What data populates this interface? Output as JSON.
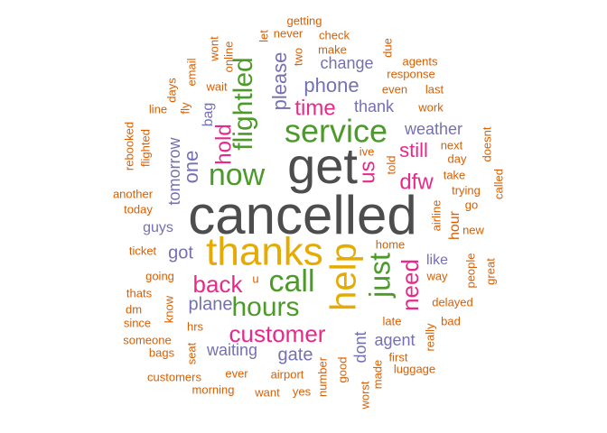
{
  "palette": {
    "gray": "#4d4d4d",
    "orange": "#d95f02",
    "purple": "#7570b3",
    "magenta": "#e7298a",
    "green": "#4c9a2a",
    "gold": "#e6ab02"
  },
  "words": [
    {
      "text": "cancelled",
      "color": "gray"
    },
    {
      "text": "get",
      "color": "gray"
    },
    {
      "text": "thanks",
      "color": "gold"
    },
    {
      "text": "help",
      "color": "gold"
    },
    {
      "text": "service",
      "color": "green"
    },
    {
      "text": "now",
      "color": "green"
    },
    {
      "text": "call",
      "color": "green"
    },
    {
      "text": "hours",
      "color": "green"
    },
    {
      "text": "flightled",
      "color": "green"
    },
    {
      "text": "just",
      "color": "green"
    },
    {
      "text": "customer",
      "color": "magenta"
    },
    {
      "text": "back",
      "color": "magenta"
    },
    {
      "text": "need",
      "color": "magenta"
    },
    {
      "text": "hold",
      "color": "magenta"
    },
    {
      "text": "time",
      "color": "magenta"
    },
    {
      "text": "us",
      "color": "magenta"
    },
    {
      "text": "dfw",
      "color": "magenta"
    },
    {
      "text": "still",
      "color": "magenta"
    },
    {
      "text": "please",
      "color": "purple"
    },
    {
      "text": "phone",
      "color": "purple"
    },
    {
      "text": "one",
      "color": "purple"
    },
    {
      "text": "tomorrow",
      "color": "purple"
    },
    {
      "text": "got",
      "color": "purple"
    },
    {
      "text": "plane",
      "color": "purple"
    },
    {
      "text": "waiting",
      "color": "purple"
    },
    {
      "text": "gate",
      "color": "purple"
    },
    {
      "text": "agent",
      "color": "purple"
    },
    {
      "text": "dont",
      "color": "purple"
    },
    {
      "text": "change",
      "color": "purple"
    },
    {
      "text": "thank",
      "color": "purple"
    },
    {
      "text": "weather",
      "color": "purple"
    },
    {
      "text": "guys",
      "color": "purple"
    },
    {
      "text": "like",
      "color": "purple"
    },
    {
      "text": "bag",
      "color": "purple"
    },
    {
      "text": "hour",
      "color": "orange"
    },
    {
      "text": "getting",
      "color": "orange"
    },
    {
      "text": "never",
      "color": "orange"
    },
    {
      "text": "let",
      "color": "orange"
    },
    {
      "text": "check",
      "color": "orange"
    },
    {
      "text": "wont",
      "color": "orange"
    },
    {
      "text": "online",
      "color": "orange"
    },
    {
      "text": "two",
      "color": "orange"
    },
    {
      "text": "make",
      "color": "orange"
    },
    {
      "text": "due",
      "color": "orange"
    },
    {
      "text": "agents",
      "color": "orange"
    },
    {
      "text": "email",
      "color": "orange"
    },
    {
      "text": "response",
      "color": "orange"
    },
    {
      "text": "days",
      "color": "orange"
    },
    {
      "text": "wait",
      "color": "orange"
    },
    {
      "text": "even",
      "color": "orange"
    },
    {
      "text": "last",
      "color": "orange"
    },
    {
      "text": "fly",
      "color": "orange"
    },
    {
      "text": "line",
      "color": "orange"
    },
    {
      "text": "work",
      "color": "orange"
    },
    {
      "text": "next",
      "color": "orange"
    },
    {
      "text": "doesnt",
      "color": "orange"
    },
    {
      "text": "rebooked",
      "color": "orange"
    },
    {
      "text": "flighted",
      "color": "orange"
    },
    {
      "text": "ive",
      "color": "orange"
    },
    {
      "text": "day",
      "color": "orange"
    },
    {
      "text": "told",
      "color": "orange"
    },
    {
      "text": "take",
      "color": "orange"
    },
    {
      "text": "called",
      "color": "orange"
    },
    {
      "text": "another",
      "color": "orange"
    },
    {
      "text": "trying",
      "color": "orange"
    },
    {
      "text": "go",
      "color": "orange"
    },
    {
      "text": "today",
      "color": "orange"
    },
    {
      "text": "airline",
      "color": "orange"
    },
    {
      "text": "new",
      "color": "orange"
    },
    {
      "text": "ticket",
      "color": "orange"
    },
    {
      "text": "home",
      "color": "orange"
    },
    {
      "text": "going",
      "color": "orange"
    },
    {
      "text": "u",
      "color": "orange"
    },
    {
      "text": "way",
      "color": "orange"
    },
    {
      "text": "people",
      "color": "orange"
    },
    {
      "text": "great",
      "color": "orange"
    },
    {
      "text": "thats",
      "color": "orange"
    },
    {
      "text": "know",
      "color": "orange"
    },
    {
      "text": "delayed",
      "color": "orange"
    },
    {
      "text": "dm",
      "color": "orange"
    },
    {
      "text": "since",
      "color": "orange"
    },
    {
      "text": "hrs",
      "color": "orange"
    },
    {
      "text": "late",
      "color": "orange"
    },
    {
      "text": "bad",
      "color": "orange"
    },
    {
      "text": "someone",
      "color": "orange"
    },
    {
      "text": "really",
      "color": "orange"
    },
    {
      "text": "bags",
      "color": "orange"
    },
    {
      "text": "seat",
      "color": "orange"
    },
    {
      "text": "first",
      "color": "orange"
    },
    {
      "text": "luggage",
      "color": "orange"
    },
    {
      "text": "customers",
      "color": "orange"
    },
    {
      "text": "ever",
      "color": "orange"
    },
    {
      "text": "airport",
      "color": "orange"
    },
    {
      "text": "good",
      "color": "orange"
    },
    {
      "text": "number",
      "color": "orange"
    },
    {
      "text": "made",
      "color": "orange"
    },
    {
      "text": "morning",
      "color": "orange"
    },
    {
      "text": "want",
      "color": "orange"
    },
    {
      "text": "yes",
      "color": "orange"
    },
    {
      "text": "worst",
      "color": "orange"
    }
  ]
}
